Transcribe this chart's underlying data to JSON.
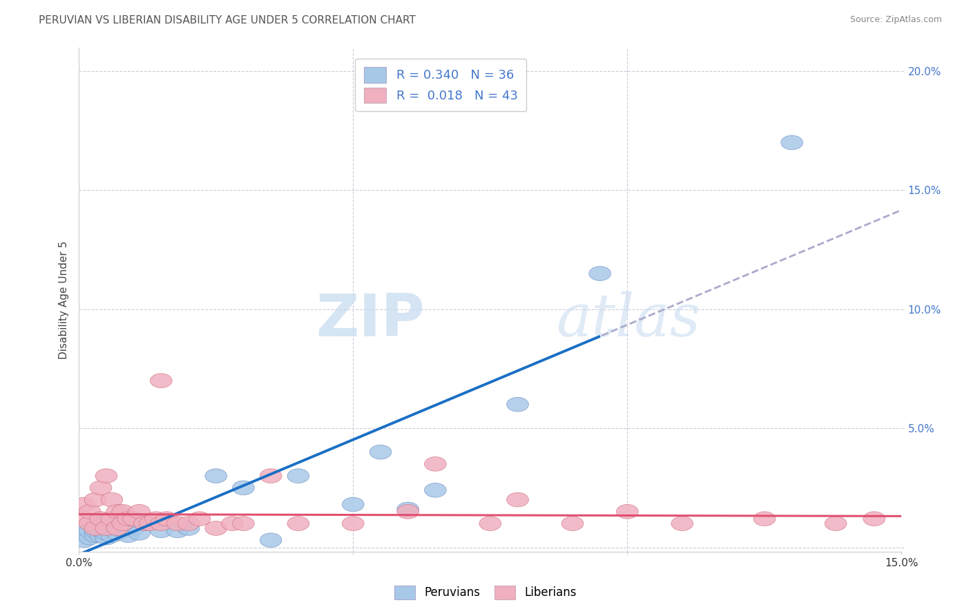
{
  "title": "PERUVIAN VS LIBERIAN DISABILITY AGE UNDER 5 CORRELATION CHART",
  "source": "Source: ZipAtlas.com",
  "ylabel": "Disability Age Under 5",
  "xlim": [
    0.0,
    0.15
  ],
  "ylim": [
    -0.002,
    0.21
  ],
  "ytick_vals": [
    0.0,
    0.05,
    0.1,
    0.15,
    0.2
  ],
  "ytick_labels": [
    "",
    "5.0%",
    "10.0%",
    "15.0%",
    "20.0%"
  ],
  "xtick_vals": [
    0.0,
    0.15
  ],
  "xtick_labels": [
    "0.0%",
    "15.0%"
  ],
  "peruvian_x": [
    0.001,
    0.001,
    0.002,
    0.002,
    0.003,
    0.003,
    0.003,
    0.004,
    0.004,
    0.004,
    0.005,
    0.005,
    0.005,
    0.006,
    0.006,
    0.007,
    0.007,
    0.008,
    0.009,
    0.01,
    0.011,
    0.012,
    0.015,
    0.018,
    0.02,
    0.025,
    0.03,
    0.035,
    0.04,
    0.05,
    0.055,
    0.06,
    0.065,
    0.08,
    0.095,
    0.13
  ],
  "peruvian_y": [
    0.003,
    0.006,
    0.004,
    0.007,
    0.005,
    0.007,
    0.009,
    0.005,
    0.007,
    0.01,
    0.004,
    0.006,
    0.008,
    0.005,
    0.008,
    0.006,
    0.009,
    0.007,
    0.005,
    0.008,
    0.006,
    0.01,
    0.007,
    0.007,
    0.008,
    0.03,
    0.025,
    0.003,
    0.03,
    0.018,
    0.04,
    0.016,
    0.024,
    0.06,
    0.115,
    0.17
  ],
  "liberian_x": [
    0.001,
    0.001,
    0.002,
    0.002,
    0.003,
    0.003,
    0.004,
    0.004,
    0.005,
    0.005,
    0.006,
    0.006,
    0.007,
    0.007,
    0.008,
    0.008,
    0.009,
    0.01,
    0.011,
    0.012,
    0.013,
    0.014,
    0.015,
    0.016,
    0.018,
    0.02,
    0.022,
    0.025,
    0.028,
    0.03,
    0.035,
    0.04,
    0.05,
    0.06,
    0.065,
    0.075,
    0.08,
    0.09,
    0.1,
    0.11,
    0.125,
    0.138,
    0.145
  ],
  "liberian_y": [
    0.012,
    0.018,
    0.01,
    0.015,
    0.02,
    0.008,
    0.025,
    0.012,
    0.03,
    0.008,
    0.02,
    0.012,
    0.015,
    0.008,
    0.01,
    0.015,
    0.012,
    0.012,
    0.015,
    0.01,
    0.01,
    0.012,
    0.01,
    0.012,
    0.01,
    0.01,
    0.012,
    0.008,
    0.01,
    0.01,
    0.03,
    0.01,
    0.01,
    0.015,
    0.035,
    0.01,
    0.02,
    0.01,
    0.015,
    0.01,
    0.012,
    0.01,
    0.012
  ],
  "liberian_outlier_x": [
    0.015
  ],
  "liberian_outlier_y": [
    0.07
  ],
  "peruvian_color": "#a8c8e8",
  "liberian_color": "#f0b0c0",
  "peruvian_edge_color": "#7090c0",
  "liberian_edge_color": "#d07080",
  "peruvian_line_color": "#1a6fc4",
  "liberian_line_color": "#e05070",
  "trend_dashed_color": "#aaaacc",
  "R_peruvian": 0.34,
  "N_peruvian": 36,
  "R_liberian": 0.018,
  "N_liberian": 43,
  "watermark_zip": "ZIP",
  "watermark_atlas": "atlas",
  "background_color": "#ffffff",
  "grid_color": "#ccccdd",
  "tick_label_color": "#4477cc",
  "title_color": "#555555",
  "source_color": "#888888",
  "ylabel_color": "#444444"
}
